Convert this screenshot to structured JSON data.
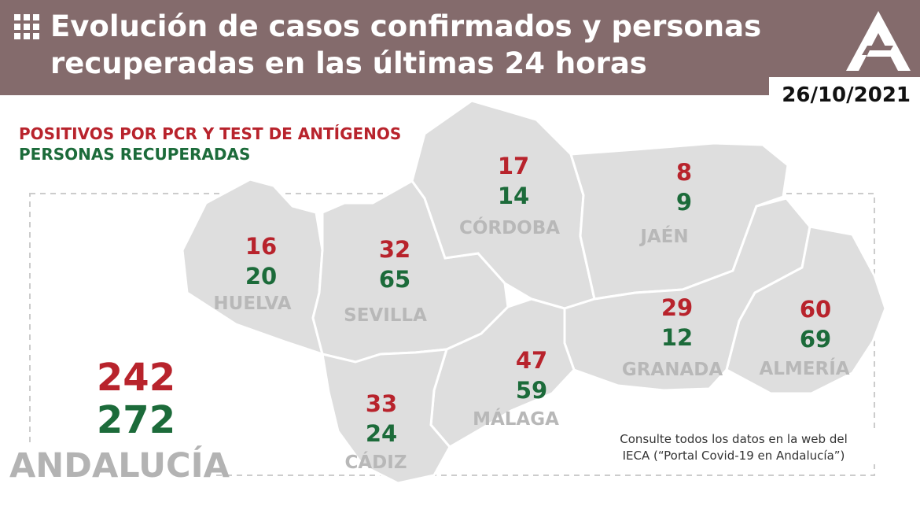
{
  "header": {
    "title_line1": "Evolución de casos confirmados y personas",
    "title_line2": "recuperadas en las últimas 24 horas",
    "date": "26/10/2021",
    "bg_color": "#846b6c"
  },
  "legend": {
    "positives": "POSITIVOS POR PCR Y TEST DE ANTÍGENOS",
    "recovered": "PERSONAS RECUPERADAS",
    "positives_color": "#b8232c",
    "recovered_color": "#1c6b3a"
  },
  "provinces": [
    {
      "name": "HUELVA",
      "positives": "16",
      "recovered": "20"
    },
    {
      "name": "SEVILLA",
      "positives": "32",
      "recovered": "65"
    },
    {
      "name": "CÓRDOBA",
      "positives": "17",
      "recovered": "14"
    },
    {
      "name": "JAÉN",
      "positives": "8",
      "recovered": "9"
    },
    {
      "name": "GRANADA",
      "positives": "29",
      "recovered": "12"
    },
    {
      "name": "ALMERÍA",
      "positives": "60",
      "recovered": "69"
    },
    {
      "name": "MÁLAGA",
      "positives": "47",
      "recovered": "59"
    },
    {
      "name": "CÁDIZ",
      "positives": "33",
      "recovered": "24"
    }
  ],
  "total": {
    "name": "ANDALUCÍA",
    "positives": "242",
    "recovered": "272"
  },
  "note": {
    "line1": "Consulte todos los datos en la web del",
    "line2": "IECA (“Portal Covid-19 en Andalucía”)"
  }
}
